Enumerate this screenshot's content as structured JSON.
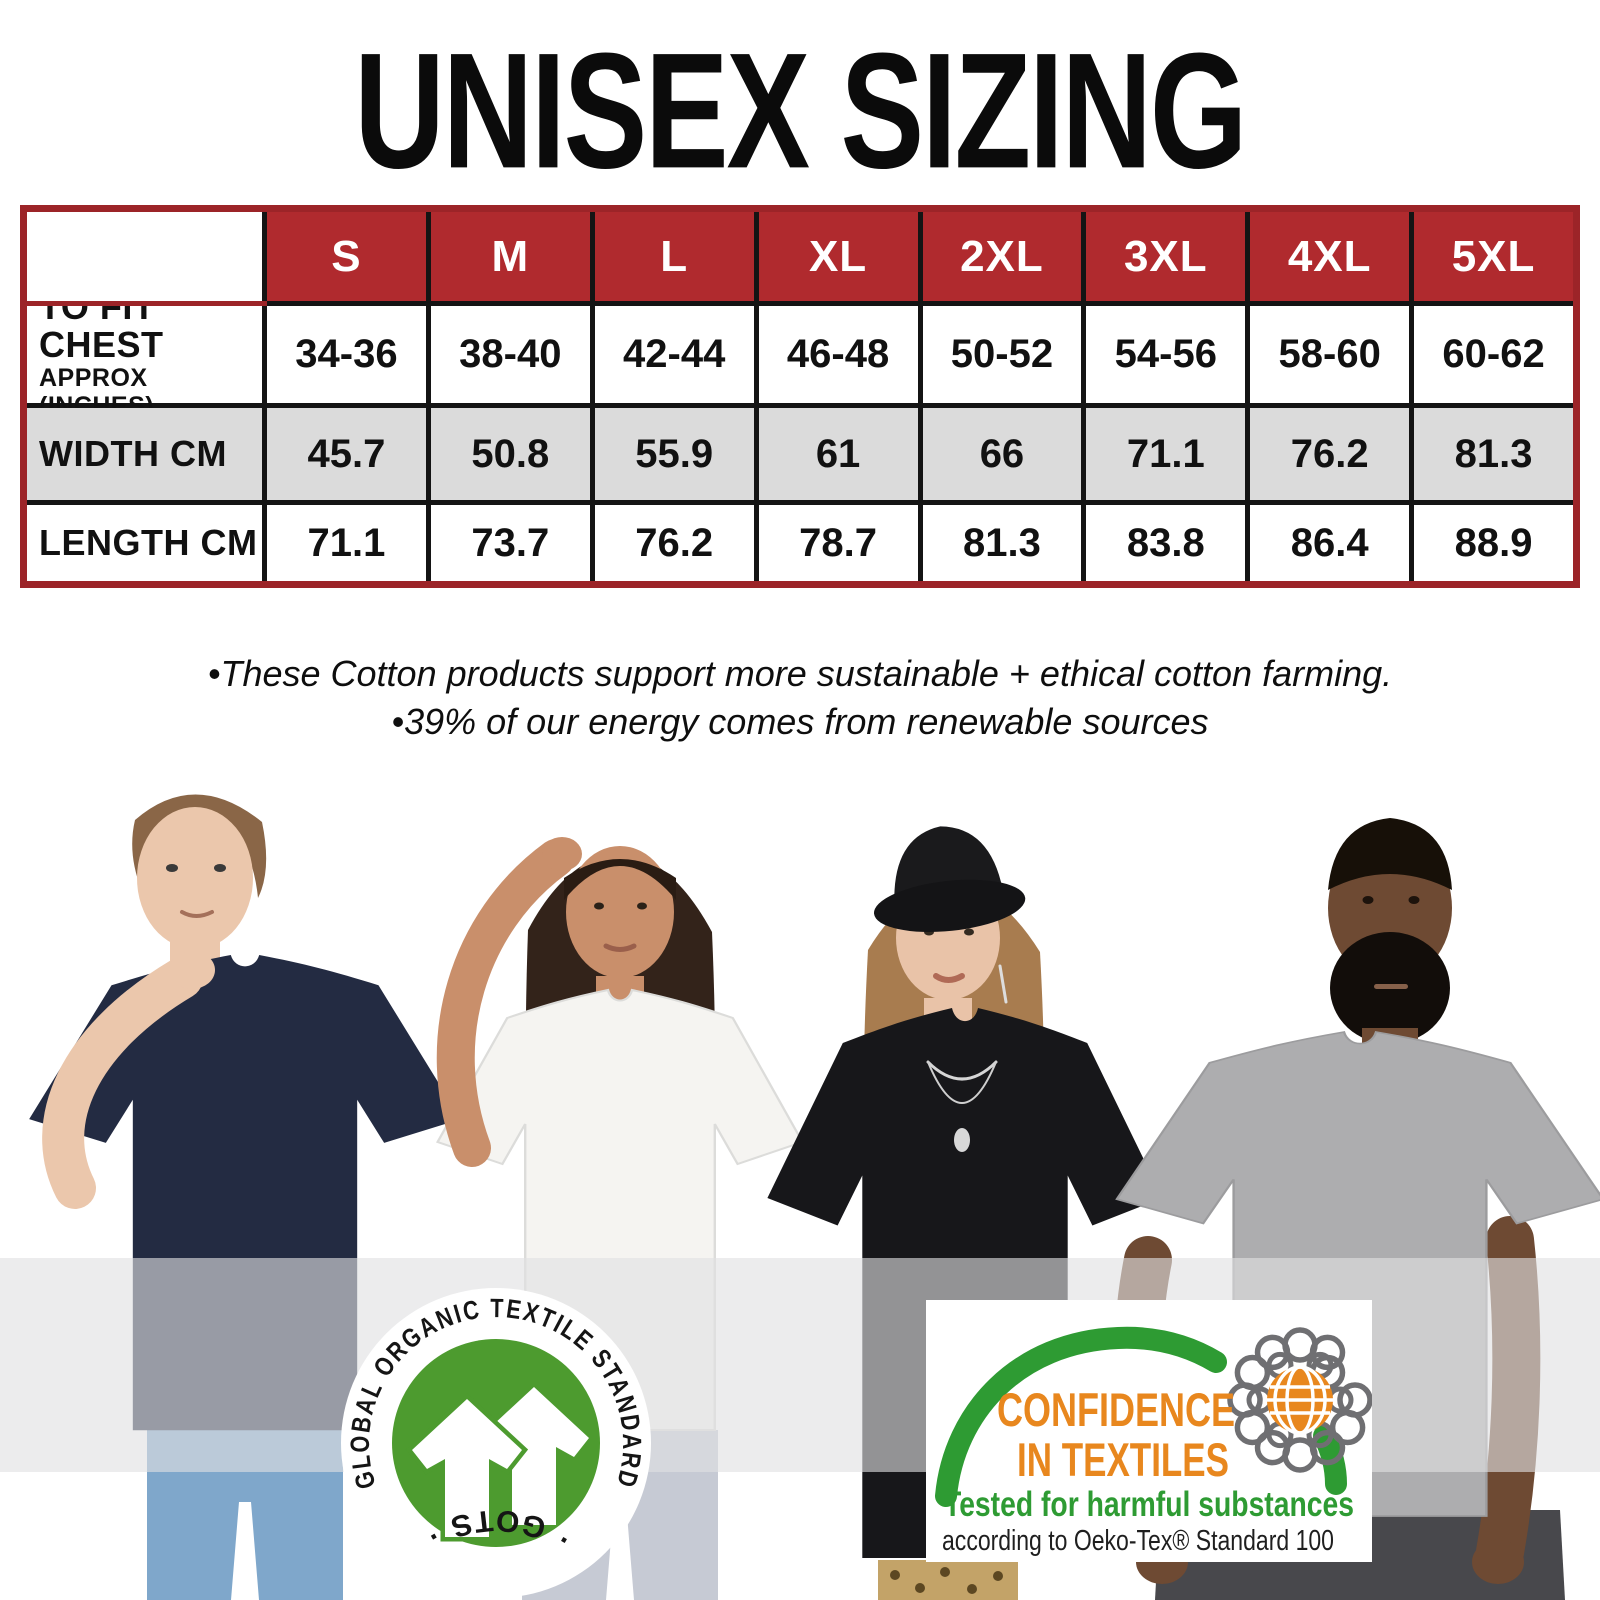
{
  "title": "UNISEX SIZING",
  "size_table": {
    "corner_label": "",
    "size_headers": [
      "S",
      "M",
      "L",
      "XL",
      "2XL",
      "3XL",
      "4XL",
      "5XL"
    ],
    "rows": [
      {
        "label": "TO FIT CHEST",
        "sublabel": "APPROX (INCHES)",
        "shaded": false,
        "values": [
          "34-36",
          "38-40",
          "42-44",
          "46-48",
          "50-52",
          "54-56",
          "58-60",
          "60-62"
        ]
      },
      {
        "label": "WIDTH CM",
        "sublabel": "",
        "shaded": true,
        "values": [
          "45.7",
          "50.8",
          "55.9",
          "61",
          "66",
          "71.1",
          "76.2",
          "81.3"
        ]
      },
      {
        "label": "LENGTH CM",
        "sublabel": "",
        "shaded": false,
        "values": [
          "71.1",
          "73.7",
          "76.2",
          "78.7",
          "81.3",
          "83.8",
          "86.4",
          "88.9"
        ]
      }
    ],
    "colors": {
      "header_bg": "#B02A2E",
      "header_text": "#FFFFFF",
      "outer_border": "#9C2428",
      "grid_line": "#141414",
      "shaded_row_bg": "#DBDBDB",
      "cell_text": "#111111"
    }
  },
  "notes": {
    "line1": "•These Cotton products support more sustainable + ethical cotton farming.",
    "line2": "•39% of our energy comes from renewable sources"
  },
  "models": [
    {
      "shirt": "navy",
      "hex": "#232B42"
    },
    {
      "shirt": "white",
      "hex": "#F5F4F1"
    },
    {
      "shirt": "black",
      "hex": "#17171A"
    },
    {
      "shirt": "grey-marl",
      "hex": "#ADADAF"
    }
  ],
  "overlay_band": {
    "color": "rgba(224,224,226,0.62)"
  },
  "badges": {
    "gots": {
      "ring_text": "GLOBAL ORGANIC TEXTILE STANDARD",
      "bottom_text": "· GOTS ·",
      "green": "#4D9B2F",
      "icon": "double-shirt-arrows"
    },
    "oeko": {
      "line1": "CONFIDENCE",
      "line2": "IN TEXTILES",
      "line3": "Tested for harmful substances",
      "line4": "according to Oeko-Tex® Standard 100",
      "orange": "#E8871E",
      "green": "#2E9B33",
      "icon": "loops-globe"
    }
  }
}
